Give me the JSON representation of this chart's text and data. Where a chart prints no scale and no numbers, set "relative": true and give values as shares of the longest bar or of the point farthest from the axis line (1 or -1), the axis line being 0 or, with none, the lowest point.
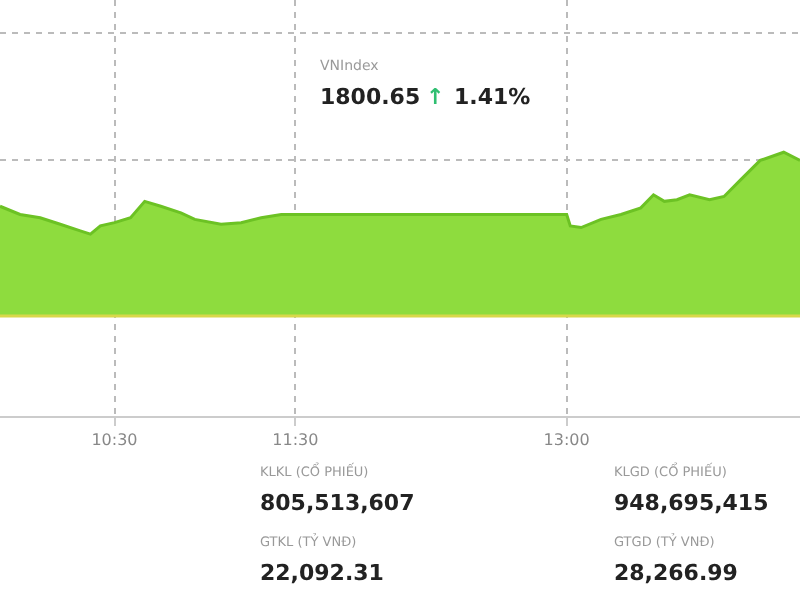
{
  "chart_data": {
    "type": "area",
    "relative": true,
    "color": "#8edc3e",
    "x": [
      9.867,
      9.978,
      10.089,
      10.2,
      10.311,
      10.367,
      10.422,
      10.5,
      10.589,
      10.667,
      10.756,
      10.867,
      10.944,
      11.089,
      11.2,
      11.311,
      11.422,
      11.5,
      13.0,
      13.02,
      13.08,
      13.19,
      13.3,
      13.41,
      13.48,
      13.54,
      13.61,
      13.68,
      13.79,
      13.87,
      13.96,
      14.07,
      14.2,
      14.29
    ],
    "values": [
      0.67,
      0.62,
      0.6,
      0.56,
      0.52,
      0.5,
      0.55,
      0.57,
      0.6,
      0.7,
      0.67,
      0.63,
      0.59,
      0.56,
      0.57,
      0.6,
      0.62,
      0.62,
      0.62,
      0.55,
      0.54,
      0.59,
      0.62,
      0.66,
      0.74,
      0.7,
      0.71,
      0.74,
      0.71,
      0.73,
      0.83,
      0.95,
      1.0,
      0.95
    ],
    "xlim": [
      9.867,
      14.29
    ],
    "xticks": [
      {
        "value": 10.5,
        "label": "10:30"
      },
      {
        "value": 11.5,
        "label": "11:30"
      },
      {
        "value": 13,
        "label": "13:00"
      }
    ],
    "grid": true,
    "ref_lines": [
      {
        "axis": "y",
        "value": 0,
        "color": "#d8d84a"
      }
    ],
    "annotations": [
      "VNIndex",
      "1800.65",
      "↑",
      "1.41%",
      "KLKL (CỔ PHIẾU)",
      "805,513,607",
      "GTKL (TỶ VNĐ)",
      "22,092.31",
      "KLGD (CỔ PHIẾU)",
      "948,695,415",
      "GTGD (TỶ VNĐ)",
      "28,266.99"
    ]
  }
}
